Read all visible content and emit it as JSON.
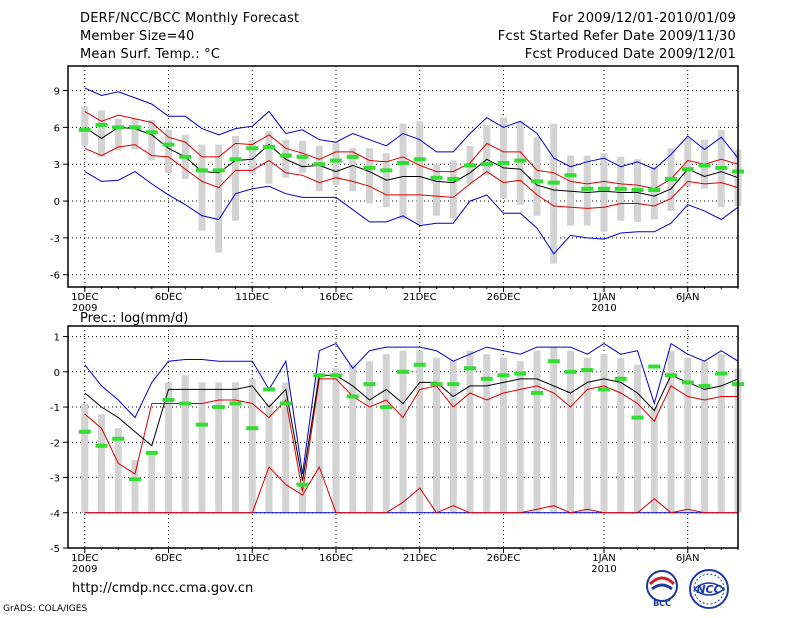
{
  "header": {
    "title": "DERF/NCC/BCC Monthly Forecast",
    "member_size": "Member Size=40",
    "variable": "Mean Surf. Temp.: °C",
    "forecast_period": "For 2009/12/01-2010/01/09",
    "start_refer": "Fcst Started Refer Date 2009/11/30",
    "produced": "Fcst Produced Date 2009/12/01"
  },
  "footer": {
    "url": "http://cmdp.ncc.cma.gov.cn",
    "credit": "GrADS: COLA/IGES"
  },
  "logos": {
    "bcc": "BCC",
    "ncc": "NCC"
  },
  "colors": {
    "range_bar": "#d3d3d3",
    "observed": "#33dd33",
    "ensemble_mean": "#000000",
    "spread_band": "#dd0000",
    "extreme": "#0000cc",
    "frame": "#000000"
  },
  "chart_data": [
    {
      "type": "line",
      "title": "Mean Surf. Temp.: °C",
      "xlabel": "",
      "ylabel": "°C",
      "ylim": [
        -7,
        11
      ],
      "yticks": [
        -6,
        -3,
        0,
        3,
        6,
        9
      ],
      "xlim": [
        0,
        40
      ],
      "x_ticks": [
        {
          "day": 1,
          "label": "1DEC",
          "year": "2009"
        },
        {
          "day": 6,
          "label": "6DEC"
        },
        {
          "day": 11,
          "label": "11DEC"
        },
        {
          "day": 16,
          "label": "16DEC"
        },
        {
          "day": 21,
          "label": "21DEC"
        },
        {
          "day": 26,
          "label": "26DEC"
        },
        {
          "day": 32,
          "label": "1JAN",
          "year": "2010"
        },
        {
          "day": 37,
          "label": "6JAN"
        }
      ],
      "days": [
        1,
        2,
        3,
        4,
        5,
        6,
        7,
        8,
        9,
        10,
        11,
        12,
        13,
        14,
        15,
        16,
        17,
        18,
        19,
        20,
        21,
        22,
        23,
        24,
        25,
        26,
        27,
        28,
        29,
        30,
        31,
        32,
        33,
        34,
        35,
        36,
        37,
        38,
        39,
        40
      ],
      "series": [
        {
          "name": "max",
          "values": [
            9.2,
            8.6,
            8.9,
            8.4,
            7.9,
            6.9,
            6.9,
            5.9,
            5.4,
            5.9,
            6.1,
            7.3,
            5.5,
            5.8,
            5.0,
            4.8,
            5.5,
            5.0,
            4.5,
            5.5,
            5.0,
            4.0,
            4.0,
            5.5,
            6.8,
            6.0,
            6.5,
            5.5,
            3.5,
            2.8,
            3.2,
            3.5,
            2.8,
            3.2,
            2.6,
            3.8,
            5.3,
            4.2,
            5.2,
            3.5
          ]
        },
        {
          "name": "upper",
          "values": [
            7.3,
            6.5,
            7.0,
            6.7,
            6.4,
            5.2,
            4.8,
            3.6,
            3.6,
            4.7,
            4.6,
            5.4,
            4.3,
            3.9,
            3.4,
            4.0,
            4.0,
            3.3,
            3.2,
            3.6,
            2.9,
            2.4,
            2.4,
            3.1,
            4.7,
            4.0,
            4.0,
            2.5,
            2.3,
            1.6,
            1.4,
            1.6,
            1.4,
            1.3,
            1.0,
            1.8,
            3.3,
            3.0,
            3.4,
            3.0
          ]
        },
        {
          "name": "mean",
          "values": [
            6.0,
            5.1,
            6.0,
            5.9,
            5.4,
            4.3,
            3.6,
            2.4,
            2.3,
            3.3,
            3.4,
            4.6,
            3.4,
            2.8,
            2.9,
            2.4,
            2.9,
            2.4,
            1.7,
            2.0,
            2.0,
            1.6,
            1.5,
            2.3,
            3.4,
            2.7,
            2.6,
            1.3,
            0.9,
            0.8,
            0.7,
            0.8,
            0.7,
            0.7,
            0.4,
            1.0,
            2.6,
            2.0,
            2.4,
            1.9
          ]
        },
        {
          "name": "lower",
          "values": [
            4.3,
            3.7,
            4.4,
            4.6,
            3.7,
            3.6,
            2.6,
            1.6,
            1.1,
            2.5,
            2.5,
            3.3,
            2.3,
            2.1,
            1.5,
            1.9,
            1.6,
            1.2,
            0.5,
            0.5,
            0.5,
            0.4,
            0.3,
            1.4,
            2.4,
            1.5,
            1.7,
            0.5,
            -0.4,
            -0.5,
            -0.6,
            -0.5,
            -0.2,
            -0.2,
            -0.4,
            0.2,
            1.6,
            1.4,
            1.5,
            1.1
          ]
        },
        {
          "name": "min",
          "values": [
            2.4,
            1.6,
            1.7,
            2.4,
            1.4,
            0.5,
            -0.3,
            -1.2,
            -1.5,
            0.6,
            1.0,
            1.2,
            0.6,
            0.3,
            0.3,
            0.3,
            -0.7,
            -1.7,
            -1.7,
            -1.2,
            -2.0,
            -1.8,
            -1.8,
            0.0,
            0.5,
            -1.0,
            -1.0,
            -2.2,
            -4.3,
            -2.8,
            -3.0,
            -3.1,
            -2.6,
            -2.5,
            -2.5,
            -1.8,
            -0.3,
            -0.8,
            -1.5,
            -0.5
          ]
        },
        {
          "name": "bar_top",
          "values": [
            7.7,
            7.4,
            6.7,
            6.7,
            6.6,
            5.8,
            5.4,
            4.6,
            4.6,
            5.3,
            5.0,
            5.7,
            5.0,
            4.9,
            4.5,
            4.8,
            4.3,
            4.3,
            3.9,
            6.3,
            6.5,
            3.0,
            3.3,
            4.5,
            6.2,
            6.8,
            6.5,
            5.2,
            6.3,
            3.7,
            3.7,
            3.9,
            3.6,
            3.4,
            2.8,
            4.3,
            5.1,
            5.0,
            5.8,
            4.2
          ]
        },
        {
          "name": "bar_bottom",
          "values": [
            4.5,
            3.6,
            4.1,
            4.2,
            3.3,
            2.3,
            1.8,
            -2.4,
            -4.2,
            -1.6,
            2.2,
            1.4,
            1.9,
            2.3,
            0.8,
            1.3,
            0.8,
            -0.2,
            -0.5,
            -1.5,
            -1.9,
            -1.2,
            -1.4,
            1.4,
            2.1,
            0.2,
            -0.3,
            -1.2,
            -5.1,
            -2.0,
            -2.0,
            -2.5,
            -1.6,
            -1.7,
            -1.5,
            -0.8,
            1.2,
            1.0,
            -0.5,
            -0.4
          ]
        },
        {
          "name": "observed",
          "values": [
            5.8,
            6.2,
            6.0,
            6.0,
            5.6,
            4.6,
            3.6,
            2.5,
            2.5,
            3.4,
            4.3,
            4.4,
            3.7,
            3.6,
            3.0,
            3.3,
            3.6,
            2.7,
            2.5,
            3.1,
            3.4,
            1.9,
            1.8,
            2.9,
            3.0,
            3.1,
            3.3,
            1.6,
            1.5,
            2.1,
            1.0,
            1.0,
            1.0,
            0.9,
            0.9,
            1.8,
            2.6,
            2.9,
            2.7,
            2.4
          ]
        }
      ]
    },
    {
      "type": "line",
      "title": "Prec.: log(mm/d)",
      "xlabel": "",
      "ylabel": "log(mm/d)",
      "ylim": [
        -5,
        1.3
      ],
      "yticks": [
        -5,
        -4,
        -3,
        -2,
        -1,
        0,
        1
      ],
      "xlim": [
        0,
        40
      ],
      "x_ticks": [
        {
          "day": 1,
          "label": "1DEC",
          "year": "2009"
        },
        {
          "day": 6,
          "label": "6DEC"
        },
        {
          "day": 11,
          "label": "11DEC"
        },
        {
          "day": 16,
          "label": "16DEC"
        },
        {
          "day": 21,
          "label": "21DEC"
        },
        {
          "day": 26,
          "label": "26DEC"
        },
        {
          "day": 32,
          "label": "1JAN",
          "year": "2010"
        },
        {
          "day": 37,
          "label": "6JAN"
        }
      ],
      "days": [
        1,
        2,
        3,
        4,
        5,
        6,
        7,
        8,
        9,
        10,
        11,
        12,
        13,
        14,
        15,
        16,
        17,
        18,
        19,
        20,
        21,
        22,
        23,
        24,
        25,
        26,
        27,
        28,
        29,
        30,
        31,
        32,
        33,
        34,
        35,
        36,
        37,
        38,
        39,
        40
      ],
      "series": [
        {
          "name": "max",
          "values": [
            0.2,
            -0.4,
            -0.8,
            -1.3,
            -0.3,
            0.3,
            0.35,
            0.35,
            0.3,
            0.3,
            0.3,
            -0.5,
            0.3,
            -2.9,
            0.6,
            0.8,
            0.1,
            0.6,
            0.7,
            0.7,
            0.7,
            0.6,
            0.3,
            0.5,
            0.7,
            0.6,
            0.5,
            0.7,
            0.7,
            0.7,
            0.5,
            0.8,
            0.5,
            0.6,
            -0.9,
            0.8,
            0.5,
            0.3,
            0.6,
            0.3
          ]
        },
        {
          "name": "mean",
          "values": [
            -0.6,
            -1.0,
            -1.3,
            -1.7,
            -2.1,
            -0.5,
            -0.5,
            -0.5,
            -0.5,
            -0.5,
            -0.4,
            -1.0,
            -0.5,
            -3.1,
            -0.1,
            -0.1,
            -0.4,
            -0.8,
            -0.5,
            -0.9,
            -0.3,
            -0.3,
            -0.7,
            -0.4,
            -0.4,
            -0.3,
            -0.2,
            -0.2,
            -0.4,
            -0.6,
            -0.3,
            -0.2,
            -0.3,
            -0.6,
            -1.1,
            -0.1,
            -0.3,
            -0.5,
            -0.4,
            -0.2
          ]
        },
        {
          "name": "upper",
          "values": [
            -1.2,
            -1.6,
            -2.6,
            -2.9,
            -0.9,
            -0.9,
            -0.9,
            -0.9,
            -0.8,
            -0.8,
            -0.9,
            -1.3,
            -0.8,
            -3.4,
            -0.2,
            -0.2,
            -0.7,
            -1.0,
            -0.8,
            -1.3,
            -0.5,
            -0.4,
            -1.0,
            -0.6,
            -0.8,
            -0.6,
            -0.5,
            -0.4,
            -0.6,
            -1.0,
            -0.5,
            -0.4,
            -0.6,
            -0.9,
            -1.4,
            -0.4,
            -0.7,
            -0.8,
            -0.7,
            -0.7
          ]
        },
        {
          "name": "lower",
          "values": [
            -4.0,
            -4.0,
            -4.0,
            -4.0,
            -4.0,
            -4.0,
            -4.0,
            -4.0,
            -4.0,
            -4.0,
            -4.0,
            -2.7,
            -3.2,
            -3.5,
            -2.7,
            -4.0,
            -4.0,
            -4.0,
            -4.0,
            -3.7,
            -3.3,
            -4.0,
            -3.8,
            -4.0,
            -4.0,
            -4.0,
            -4.0,
            -3.9,
            -3.8,
            -4.0,
            -3.9,
            -4.0,
            -4.0,
            -4.0,
            -3.6,
            -4.0,
            -3.9,
            -4.0,
            -4.0,
            -4.0
          ]
        },
        {
          "name": "min",
          "values": [
            -4.0,
            -4.0,
            -4.0,
            -4.0,
            -4.0,
            -4.0,
            -4.0,
            -4.0,
            -4.0,
            -4.0,
            -4.0,
            -4.0,
            -4.0,
            -4.0,
            -4.0,
            -4.0,
            -4.0,
            -4.0,
            -4.0,
            -4.0,
            -4.0,
            -4.0,
            -4.0,
            -4.0,
            -4.0,
            -4.0,
            -4.0,
            -4.0,
            -4.0,
            -4.0,
            -4.0,
            -4.0,
            -4.0,
            -4.0,
            -4.0,
            -4.0,
            -4.0,
            -4.0,
            -4.0,
            -4.0
          ]
        },
        {
          "name": "bar_top",
          "values": [
            -0.9,
            -1.2,
            -1.6,
            -2.5,
            -2.3,
            -0.3,
            -0.1,
            -0.3,
            -0.3,
            -0.3,
            -0.2,
            -0.9,
            -0.3,
            -3.2,
            -0.1,
            0.1,
            0.2,
            0.3,
            0.5,
            0.6,
            0.6,
            0.4,
            0.3,
            0.6,
            0.5,
            0.4,
            0.3,
            0.6,
            0.7,
            0.6,
            0.4,
            0.5,
            0.4,
            0.2,
            -1.0,
            0.6,
            0.4,
            0.3,
            0.5,
            0.1
          ]
        },
        {
          "name": "bar_bottom",
          "values": [
            -4.0,
            -4.0,
            -4.0,
            -4.0,
            -4.0,
            -4.0,
            -4.0,
            -4.0,
            -4.0,
            -4.0,
            -4.0,
            -4.0,
            -4.0,
            -4.0,
            -4.0,
            -4.0,
            -4.0,
            -4.0,
            -4.0,
            -4.0,
            -4.0,
            -4.0,
            -4.0,
            -4.0,
            -4.0,
            -4.0,
            -4.0,
            -4.0,
            -4.0,
            -4.0,
            -4.0,
            -4.0,
            -4.0,
            -4.0,
            -4.0,
            -4.0,
            -4.0,
            -4.0,
            -4.0,
            -4.0
          ]
        },
        {
          "name": "observed",
          "values": [
            -1.7,
            -2.1,
            -1.9,
            -3.05,
            -2.3,
            -0.8,
            -0.9,
            -1.5,
            -1.0,
            -0.9,
            -1.6,
            -0.5,
            -0.9,
            -3.2,
            -0.1,
            -0.1,
            -0.7,
            -0.35,
            -1.0,
            0.0,
            0.2,
            -0.35,
            -0.35,
            0.1,
            -0.2,
            -0.1,
            -0.05,
            -0.6,
            0.3,
            0.0,
            0.05,
            -0.5,
            -0.2,
            -1.3,
            0.15,
            -0.1,
            -0.3,
            -0.4,
            -0.05,
            -0.35
          ]
        }
      ]
    }
  ]
}
